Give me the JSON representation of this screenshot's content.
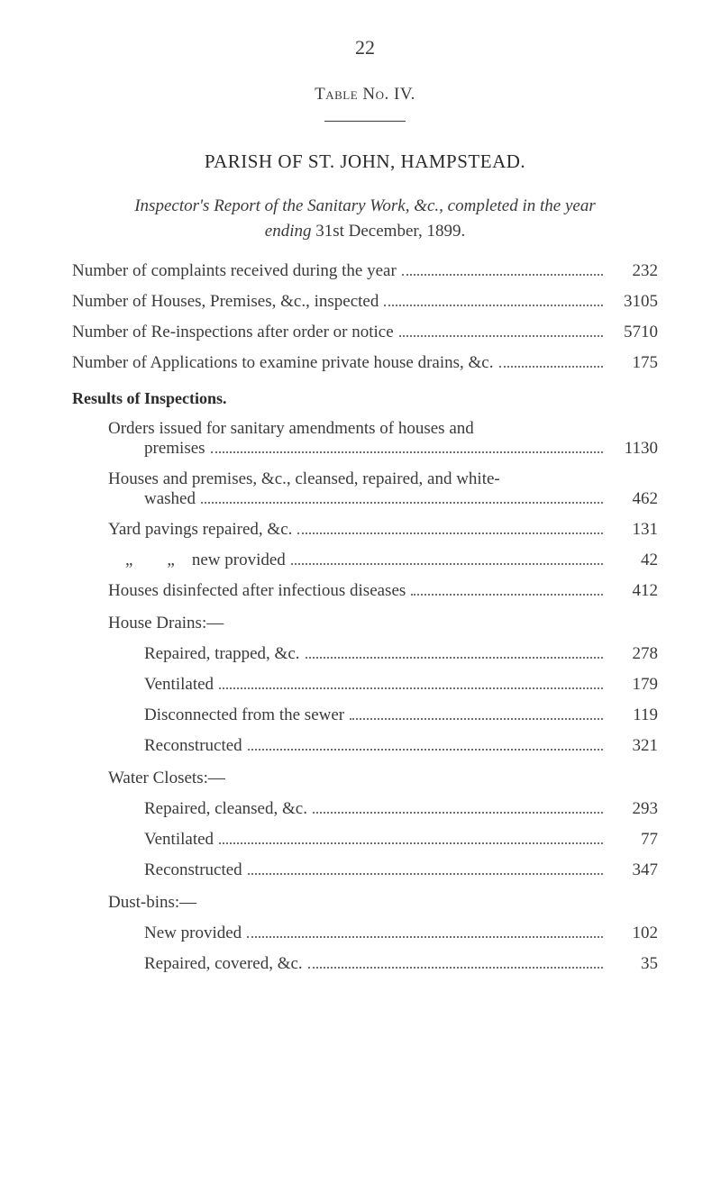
{
  "pageNumber": "22",
  "tableNo": "Table No. IV.",
  "heading": "PARISH OF ST. JOHN, HAMPSTEAD.",
  "subtitle1": "Inspector's Report of the Sanitary Work, &c., completed in the year",
  "subtitle2a": "ending ",
  "subtitle2b": "31st December, 1899.",
  "mainEntries": [
    {
      "label": "Number of complaints received during the year",
      "value": "232"
    },
    {
      "label": "Number of Houses, Premises, &c., inspected",
      "value": "3105"
    },
    {
      "label": "Number of Re-inspections after order or notice",
      "value": "5710"
    },
    {
      "label": "Number of Applications to examine private house drains, &c.",
      "value": "175"
    }
  ],
  "resultsHeader": "Results of Inspections.",
  "resultsEntries": [
    {
      "label1": "Orders issued for sanitary amendments of houses and",
      "label2": "premises",
      "value": "1130"
    },
    {
      "label1": "Houses and premises, &c., cleansed, repaired, and white-",
      "label2": "washed",
      "value": "462"
    }
  ],
  "simpleResults": [
    {
      "label": "Yard pavings repaired, &c.",
      "value": "131"
    },
    {
      "label": "    „        „    new provided",
      "value": "42"
    },
    {
      "label": "Houses disinfected after infectious diseases",
      "value": "412"
    }
  ],
  "houseDrainsHeader": "House Drains:—",
  "houseDrains": [
    {
      "label": "Repaired, trapped, &c.",
      "value": "278"
    },
    {
      "label": "Ventilated",
      "value": "179"
    },
    {
      "label": "Disconnected from the sewer",
      "value": "119"
    },
    {
      "label": "Reconstructed",
      "value": "321"
    }
  ],
  "waterClosetsHeader": "Water Closets:—",
  "waterClosets": [
    {
      "label": "Repaired, cleansed, &c.",
      "value": "293"
    },
    {
      "label": "Ventilated",
      "value": "77"
    },
    {
      "label": "Reconstructed",
      "value": "347"
    }
  ],
  "dustBinsHeader": "Dust-bins:—",
  "dustBins": [
    {
      "label": "New provided",
      "value": "102"
    },
    {
      "label": "Repaired, covered, &c.",
      "value": "35"
    }
  ]
}
